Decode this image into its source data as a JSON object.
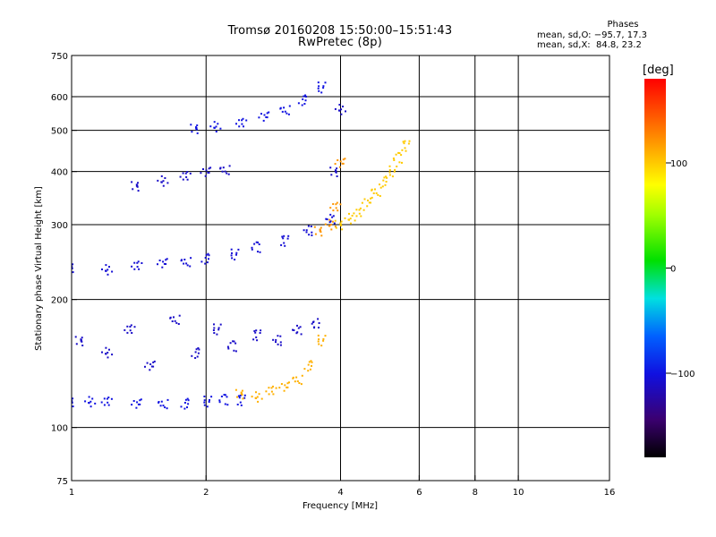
{
  "header": {
    "title_line1": "Tromsø 20160208 15:50:00–15:51:43",
    "title_line2": "RwPretec (8p)"
  },
  "phases": {
    "heading": "Phases",
    "line_o": "mean, sd,O: −95.7, 17.3",
    "line_x": "mean, sd,X:  84.8, 23.2"
  },
  "colorbar": {
    "unit_label": "[deg]",
    "ticks": [
      {
        "value": 100,
        "label": "100"
      },
      {
        "value": 0,
        "label": "0"
      },
      {
        "value": -100,
        "label": "−100"
      }
    ],
    "range": [
      -180,
      180
    ]
  },
  "chart_data": {
    "type": "scatter",
    "title": "Tromsø 20160208 15:50:00–15:51:43",
    "subtitle": "RwPretec (8p)",
    "xlabel": "Frequency [MHz]",
    "ylabel": "Stationary phase Virtual Height [km]",
    "x_scale": "log2",
    "y_scale": "log",
    "xlim": [
      1,
      16
    ],
    "ylim": [
      75,
      750
    ],
    "grid": true,
    "x_ticks": [
      {
        "value": 1,
        "label": "1"
      },
      {
        "value": 2,
        "label": "2"
      },
      {
        "value": 4,
        "label": "4"
      },
      {
        "value": 6,
        "label": "6"
      },
      {
        "value": 8,
        "label": "8"
      },
      {
        "value": 10,
        "label": "10"
      },
      {
        "value": 16,
        "label": "16"
      }
    ],
    "y_ticks": [
      {
        "value": 75,
        "label": "75"
      },
      {
        "value": 100,
        "label": "100"
      },
      {
        "value": 200,
        "label": "200"
      },
      {
        "value": 300,
        "label": "300"
      },
      {
        "value": 400,
        "label": "400"
      },
      {
        "value": 500,
        "label": "500"
      },
      {
        "value": 600,
        "label": "600"
      },
      {
        "value": 750,
        "label": "750"
      }
    ],
    "x_grid": [
      2,
      4,
      6,
      8,
      10
    ],
    "y_grid": [
      100,
      200,
      300,
      400,
      500,
      600
    ],
    "color_scale": "phase in degrees (rainbow, −180 to 180)",
    "series": [
      {
        "x": [
          1.0,
          1.1,
          1.2,
          1.4,
          1.6,
          1.8,
          2.0,
          2.2,
          2.4
        ],
        "y": [
          115,
          115,
          115,
          114,
          114,
          114,
          115,
          116,
          116
        ],
        "phase": -100
      },
      {
        "x": [
          1.05,
          1.2,
          1.35,
          1.5,
          1.7,
          1.9,
          2.1,
          2.3,
          2.6,
          2.9,
          3.2,
          3.5
        ],
        "y": [
          160,
          150,
          170,
          140,
          180,
          150,
          170,
          155,
          165,
          160,
          170,
          175
        ],
        "phase": -110
      },
      {
        "x": [
          2.4,
          2.6,
          2.8,
          3.0,
          3.2,
          3.4,
          3.6
        ],
        "y": [
          120,
          118,
          122,
          125,
          130,
          140,
          160
        ],
        "phase": 110
      },
      {
        "x": [
          1.0,
          1.2,
          1.4,
          1.6,
          1.8,
          2.0,
          2.3,
          2.6,
          3.0,
          3.4,
          3.8
        ],
        "y": [
          238,
          235,
          240,
          244,
          246,
          250,
          255,
          265,
          275,
          290,
          310
        ],
        "phase": -105
      },
      {
        "x": [
          3.6,
          3.8,
          3.9,
          4.0
        ],
        "y": [
          290,
          300,
          330,
          420
        ],
        "phase": 120
      },
      {
        "x": [
          4.0,
          4.2,
          4.4,
          4.6,
          4.8,
          5.0,
          5.2,
          5.4,
          5.6
        ],
        "y": [
          300,
          310,
          320,
          340,
          360,
          380,
          400,
          430,
          460
        ],
        "phase": 100
      },
      {
        "x": [
          1.9,
          2.1,
          2.4,
          2.7,
          3.0,
          3.3,
          3.6
        ],
        "y": [
          505,
          510,
          520,
          540,
          560,
          590,
          630
        ],
        "phase": -100
      },
      {
        "x": [
          1.4,
          1.6,
          1.8,
          2.0,
          2.2
        ],
        "y": [
          370,
          380,
          390,
          400,
          405
        ],
        "phase": -110
      },
      {
        "x": [
          3.9,
          4.0
        ],
        "y": [
          400,
          560
        ],
        "phase": -110
      }
    ]
  }
}
